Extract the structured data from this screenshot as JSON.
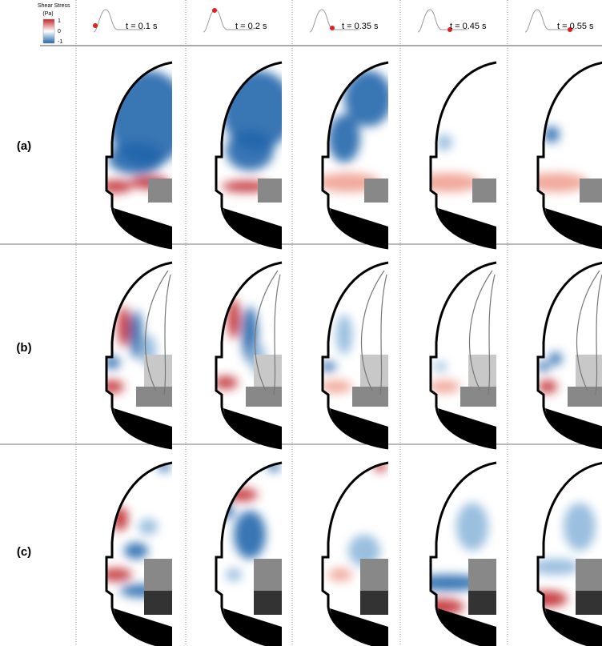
{
  "colorbar": {
    "title": "Shear Stress",
    "unit": "(Pa)",
    "ticks": [
      "1",
      "0",
      "-1"
    ]
  },
  "time_labels": [
    "t = 0.1 s",
    "t = 0.2 s",
    "t = 0.35 s",
    "t = 0.45 s",
    "t = 0.55 s"
  ],
  "row_labels": [
    "(a)",
    "(b)",
    "(c)"
  ]
}
